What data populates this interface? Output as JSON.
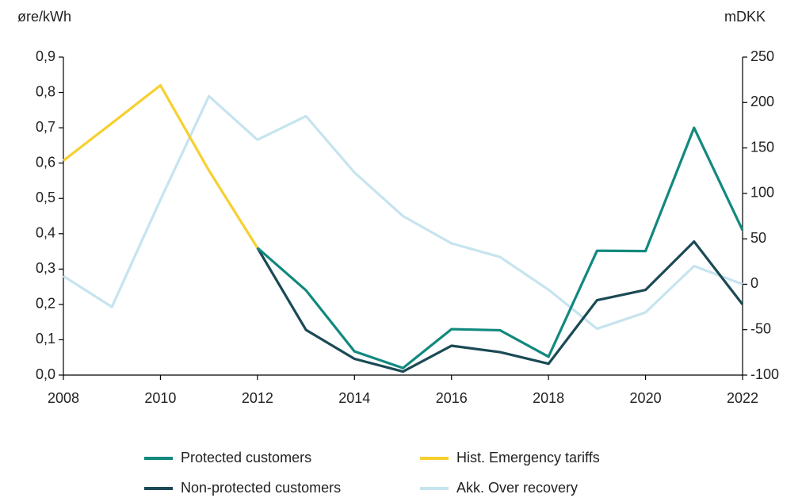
{
  "chart_data": {
    "type": "line",
    "ylabel": "øre/kWh",
    "y2label": "mDKK",
    "x": [
      2008,
      2009,
      2010,
      2011,
      2012,
      2013,
      2014,
      2015,
      2016,
      2017,
      2018,
      2019,
      2020,
      2021,
      2022
    ],
    "xlim": [
      2008,
      2022
    ],
    "xticks": [
      2008,
      2010,
      2012,
      2014,
      2016,
      2018,
      2020,
      2022
    ],
    "ylim": [
      0,
      0.9
    ],
    "yticks": [
      {
        "value": 0,
        "label": "0,0"
      },
      {
        "value": 0.1,
        "label": "0,1"
      },
      {
        "value": 0.2,
        "label": "0,2"
      },
      {
        "value": 0.3,
        "label": "0,3"
      },
      {
        "value": 0.4,
        "label": "0,4"
      },
      {
        "value": 0.5,
        "label": "0,5"
      },
      {
        "value": 0.6,
        "label": "0,6"
      },
      {
        "value": 0.7,
        "label": "0,7"
      },
      {
        "value": 0.8,
        "label": "0,8"
      },
      {
        "value": 0.9,
        "label": "0,9"
      }
    ],
    "y2lim": [
      -100,
      250
    ],
    "y2ticks": [
      -100,
      -50,
      0,
      50,
      100,
      150,
      200,
      250
    ],
    "series": [
      {
        "name": "Protected customers",
        "color": "#12897e",
        "values": [
          null,
          null,
          null,
          null,
          0.36,
          0.24,
          0.067,
          0.02,
          0.13,
          0.127,
          0.052,
          0.352,
          0.351,
          0.7,
          0.41
        ]
      },
      {
        "name": "Hist. Emergency tariffs",
        "color": "#f6d030",
        "values": [
          0.607,
          0.713,
          0.82,
          0.579,
          0.36,
          null,
          null,
          null,
          null,
          null,
          null,
          null,
          null,
          null,
          null
        ]
      },
      {
        "name": "Non-protected customers",
        "color": "#1a4a55",
        "values": [
          null,
          null,
          null,
          null,
          0.36,
          0.128,
          0.046,
          0.01,
          0.083,
          0.065,
          0.032,
          0.212,
          0.241,
          0.378,
          0.2
        ]
      },
      {
        "name": "Akk. Over recovery",
        "color": "#c6e4ef",
        "axis": "y2",
        "values": [
          9,
          -25,
          93,
          207,
          159,
          185,
          123,
          75,
          45,
          30,
          -6,
          -49,
          -31,
          20,
          0
        ]
      }
    ]
  }
}
